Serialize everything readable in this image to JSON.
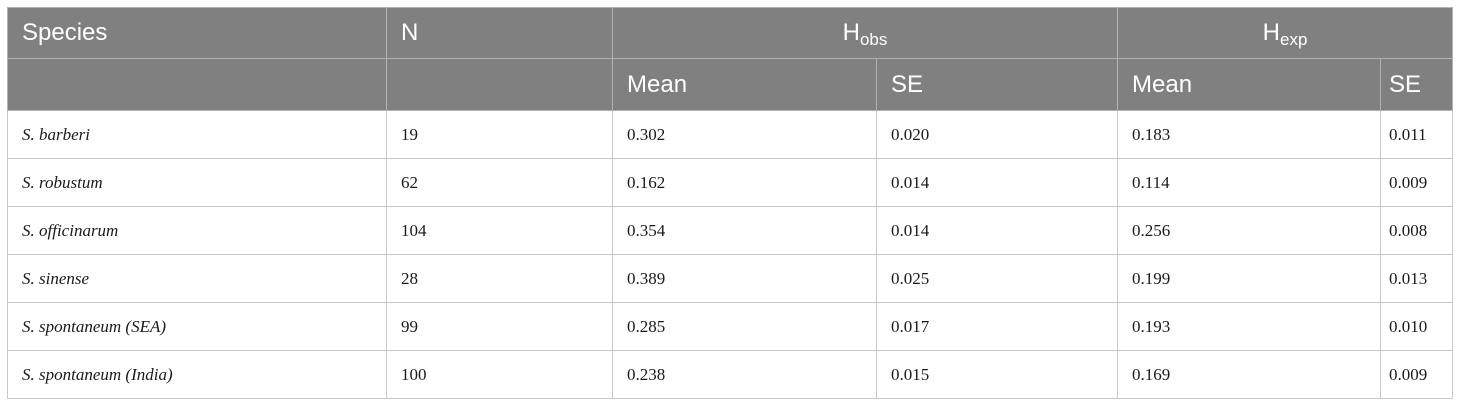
{
  "header": {
    "species": "Species",
    "n": "N",
    "hobs_main": "H",
    "hobs_sub": "obs",
    "hexp_main": "H",
    "hexp_sub": "exp",
    "mean1": "Mean",
    "se1": "SE",
    "mean2": "Mean",
    "se2": "SE"
  },
  "rows": [
    {
      "species": "S. barberi",
      "n": "19",
      "hobs_mean": "0.302",
      "hobs_se": "0.020",
      "hexp_mean": "0.183",
      "hexp_se": "0.011"
    },
    {
      "species": "S. robustum",
      "n": "62",
      "hobs_mean": "0.162",
      "hobs_se": "0.014",
      "hexp_mean": "0.114",
      "hexp_se": "0.009"
    },
    {
      "species": "S. officinarum",
      "n": "104",
      "hobs_mean": "0.354",
      "hobs_se": "0.014",
      "hexp_mean": "0.256",
      "hexp_se": "0.008"
    },
    {
      "species": "S. sinense",
      "n": "28",
      "hobs_mean": "0.389",
      "hobs_se": "0.025",
      "hexp_mean": "0.199",
      "hexp_se": "0.013"
    },
    {
      "species": "S. spontaneum (SEA)",
      "n": "99",
      "hobs_mean": "0.285",
      "hobs_se": "0.017",
      "hexp_mean": "0.193",
      "hexp_se": "0.010"
    },
    {
      "species": "S. spontaneum (India)",
      "n": "100",
      "hobs_mean": "0.238",
      "hobs_se": "0.015",
      "hexp_mean": "0.169",
      "hexp_se": "0.009"
    }
  ]
}
